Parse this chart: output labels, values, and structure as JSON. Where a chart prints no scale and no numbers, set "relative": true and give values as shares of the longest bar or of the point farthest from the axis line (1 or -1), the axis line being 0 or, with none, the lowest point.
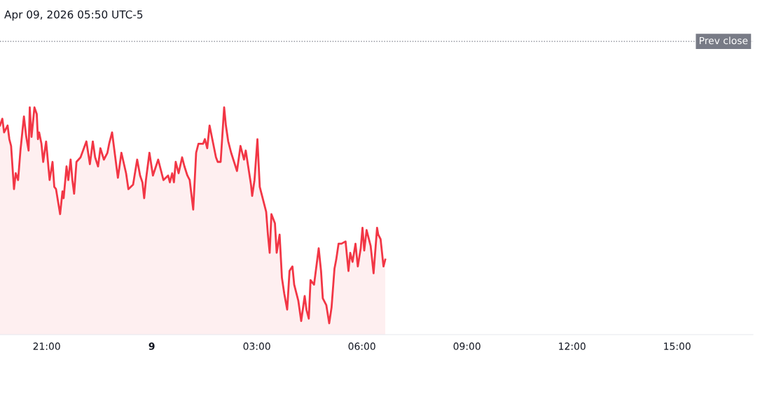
{
  "chart_data": {
    "type": "area",
    "title": "Apr 09, 2026 05:50 UTC-5",
    "relative": true,
    "color": "#f23645",
    "xlim": [
      "2026-04-08T19:40",
      "2026-04-09T17:10"
    ],
    "xticks": [
      {
        "value": "2026-04-08T21:00",
        "label": "21:00"
      },
      {
        "value": "2026-04-09T00:00",
        "label": "9"
      },
      {
        "value": "2026-04-09T03:00",
        "label": "03:00"
      },
      {
        "value": "2026-04-09T06:00",
        "label": "06:00"
      },
      {
        "value": "2026-04-09T09:00",
        "label": "09:00"
      },
      {
        "value": "2026-04-09T12:00",
        "label": "12:00"
      },
      {
        "value": "2026-04-09T15:00",
        "label": "15:00"
      }
    ],
    "x": [
      "2026-04-08T19:40",
      "2026-04-08T19:44",
      "2026-04-08T19:47",
      "2026-04-08T19:53",
      "2026-04-08T19:56",
      "2026-04-08T19:59",
      "2026-04-08T20:04",
      "2026-04-08T20:07",
      "2026-04-08T20:11",
      "2026-04-08T20:15",
      "2026-04-08T20:17",
      "2026-04-08T20:21",
      "2026-04-08T20:25",
      "2026-04-08T20:29",
      "2026-04-08T20:31",
      "2026-04-08T20:34",
      "2026-04-08T20:39",
      "2026-04-08T20:43",
      "2026-04-08T20:45",
      "2026-04-08T20:47",
      "2026-04-08T20:51",
      "2026-04-08T20:54",
      "2026-04-08T20:59",
      "2026-04-08T21:05",
      "2026-04-08T21:10",
      "2026-04-08T21:13",
      "2026-04-08T21:16",
      "2026-04-08T21:23",
      "2026-04-08T21:27",
      "2026-04-08T21:29",
      "2026-04-08T21:34",
      "2026-04-08T21:37",
      "2026-04-08T21:41",
      "2026-04-08T21:44",
      "2026-04-08T21:47",
      "2026-04-08T21:51",
      "2026-04-08T21:58",
      "2026-04-08T22:08",
      "2026-04-08T22:14",
      "2026-04-08T22:19",
      "2026-04-08T22:23",
      "2026-04-08T22:28",
      "2026-04-08T22:32",
      "2026-04-08T22:38",
      "2026-04-08T22:44",
      "2026-04-08T22:47",
      "2026-04-08T22:52",
      "2026-04-08T22:58",
      "2026-04-08T23:02",
      "2026-04-08T23:08",
      "2026-04-08T23:16",
      "2026-04-08T23:20",
      "2026-04-08T23:28",
      "2026-04-08T23:35",
      "2026-04-08T23:40",
      "2026-04-08T23:44",
      "2026-04-08T23:47",
      "2026-04-08T23:50",
      "2026-04-08T23:56",
      "2026-04-09T00:02",
      "2026-04-09T00:11",
      "2026-04-09T00:20",
      "2026-04-09T00:28",
      "2026-04-09T00:31",
      "2026-04-09T00:35",
      "2026-04-09T00:38",
      "2026-04-09T00:41",
      "2026-04-09T00:46",
      "2026-04-09T00:52",
      "2026-04-09T00:56",
      "2026-04-09T01:01",
      "2026-04-09T01:05",
      "2026-04-09T01:11",
      "2026-04-09T01:16",
      "2026-04-09T01:20",
      "2026-04-09T01:28",
      "2026-04-09T01:31",
      "2026-04-09T01:35",
      "2026-04-09T01:39",
      "2026-04-09T01:50",
      "2026-04-09T01:53",
      "2026-04-09T01:58",
      "2026-04-09T02:04",
      "2026-04-09T02:07",
      "2026-04-09T02:11",
      "2026-04-09T02:16",
      "2026-04-09T02:26",
      "2026-04-09T02:32",
      "2026-04-09T02:38",
      "2026-04-09T02:41",
      "2026-04-09T02:44",
      "2026-04-09T02:50",
      "2026-04-09T02:52",
      "2026-04-09T02:56",
      "2026-04-09T03:01",
      "2026-04-09T03:05",
      "2026-04-09T03:10",
      "2026-04-09T03:16",
      "2026-04-09T03:19",
      "2026-04-09T03:22",
      "2026-04-09T03:25",
      "2026-04-09T03:31",
      "2026-04-09T03:34",
      "2026-04-09T03:39",
      "2026-04-09T03:43",
      "2026-04-09T03:47",
      "2026-04-09T03:52",
      "2026-04-09T03:56",
      "2026-04-09T04:01",
      "2026-04-09T04:04",
      "2026-04-09T04:11",
      "2026-04-09T04:16",
      "2026-04-09T04:22",
      "2026-04-09T04:25",
      "2026-04-09T04:29",
      "2026-04-09T04:32",
      "2026-04-09T04:38",
      "2026-04-09T04:40",
      "2026-04-09T04:46",
      "2026-04-09T04:50",
      "2026-04-09T04:53",
      "2026-04-09T04:59",
      "2026-04-09T05:04",
      "2026-04-09T05:08",
      "2026-04-09T05:13",
      "2026-04-09T05:16",
      "2026-04-09T05:20",
      "2026-04-09T05:25",
      "2026-04-09T05:32",
      "2026-04-09T05:37",
      "2026-04-09T05:40",
      "2026-04-09T05:44",
      "2026-04-09T05:49",
      "2026-04-09T05:53",
      "2026-04-09T05:58",
      "2026-04-09T06:01",
      "2026-04-09T06:04",
      "2026-04-09T06:08",
      "2026-04-09T06:11",
      "2026-04-09T06:15",
      "2026-04-09T06:20",
      "2026-04-09T06:26",
      "2026-04-09T06:28",
      "2026-04-09T06:32",
      "2026-04-09T06:37",
      "2026-04-09T06:40"
    ],
    "values": [
      0.92,
      0.95,
      0.89,
      0.92,
      0.86,
      0.83,
      0.64,
      0.71,
      0.68,
      0.81,
      0.86,
      0.96,
      0.87,
      0.81,
      1.0,
      0.87,
      1.0,
      0.97,
      0.86,
      0.89,
      0.84,
      0.76,
      0.85,
      0.68,
      0.76,
      0.65,
      0.64,
      0.53,
      0.63,
      0.6,
      0.74,
      0.68,
      0.77,
      0.68,
      0.62,
      0.76,
      0.78,
      0.85,
      0.75,
      0.85,
      0.78,
      0.74,
      0.82,
      0.77,
      0.8,
      0.84,
      0.89,
      0.77,
      0.69,
      0.8,
      0.71,
      0.64,
      0.66,
      0.77,
      0.7,
      0.67,
      0.6,
      0.68,
      0.8,
      0.7,
      0.77,
      0.68,
      0.7,
      0.67,
      0.71,
      0.67,
      0.76,
      0.71,
      0.78,
      0.74,
      0.7,
      0.68,
      0.55,
      0.8,
      0.84,
      0.84,
      0.86,
      0.82,
      0.92,
      0.78,
      0.76,
      0.76,
      1.0,
      0.92,
      0.85,
      0.8,
      0.72,
      0.83,
      0.77,
      0.81,
      0.76,
      0.66,
      0.61,
      0.68,
      0.86,
      0.65,
      0.6,
      0.54,
      0.44,
      0.36,
      0.53,
      0.49,
      0.36,
      0.44,
      0.25,
      0.18,
      0.11,
      0.28,
      0.3,
      0.22,
      0.15,
      0.06,
      0.17,
      0.11,
      0.07,
      0.24,
      0.22,
      0.26,
      0.38,
      0.28,
      0.16,
      0.13,
      0.05,
      0.12,
      0.29,
      0.33,
      0.4,
      0.4,
      0.41,
      0.28,
      0.36,
      0.32,
      0.4,
      0.3,
      0.38,
      0.47,
      0.37,
      0.46,
      0.43,
      0.39,
      0.27,
      0.47,
      0.44,
      0.42,
      0.3,
      0.33
    ],
    "ref_lines": [
      {
        "axis": "y",
        "value": 1.29,
        "label": "Prev close",
        "color": "#787b86",
        "line_style": "dotted"
      }
    ]
  }
}
